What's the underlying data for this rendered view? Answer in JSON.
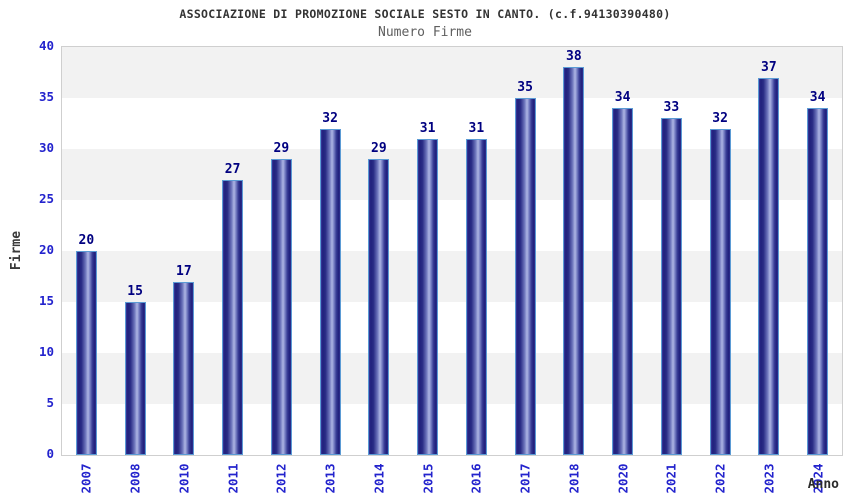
{
  "header": {
    "title": "ASSOCIAZIONE DI PROMOZIONE SOCIALE SESTO IN CANTO. (c.f.94130390480)",
    "subtitle": "Numero Firme"
  },
  "chart_data": {
    "type": "bar",
    "title": "ASSOCIAZIONE DI PROMOZIONE SOCIALE SESTO IN CANTO. (c.f.94130390480)",
    "subtitle": "Numero Firme",
    "categories": [
      "2007",
      "2008",
      "2010",
      "2011",
      "2012",
      "2013",
      "2014",
      "2015",
      "2016",
      "2017",
      "2018",
      "2020",
      "2021",
      "2022",
      "2023",
      "2024"
    ],
    "values": [
      20,
      15,
      17,
      27,
      29,
      32,
      29,
      31,
      31,
      35,
      38,
      34,
      33,
      32,
      37,
      34
    ],
    "xlabel": "Anno",
    "ylabel": "Firme",
    "ylim": [
      0,
      40
    ],
    "yticks": [
      0,
      5,
      10,
      15,
      20,
      25,
      30,
      35,
      40
    ],
    "grid": "alternating-horizontal-bands-every-5",
    "legend": "none",
    "bar_value_labels_shown": true,
    "colors": {
      "bar_dark": "#20207c",
      "bar_light": "#aeb6e4",
      "bar_border": "#5b9bd5",
      "value_label": "#000080",
      "axis_tick_label": "#2323cd",
      "title": "#333333",
      "subtitle": "#5f5f5f",
      "axis_title": "#2b2b2b",
      "band_gray": "#f2f2f2",
      "band_white": "#ffffff",
      "plot_border": "#cfcfcf",
      "background": "#ffffff"
    }
  }
}
